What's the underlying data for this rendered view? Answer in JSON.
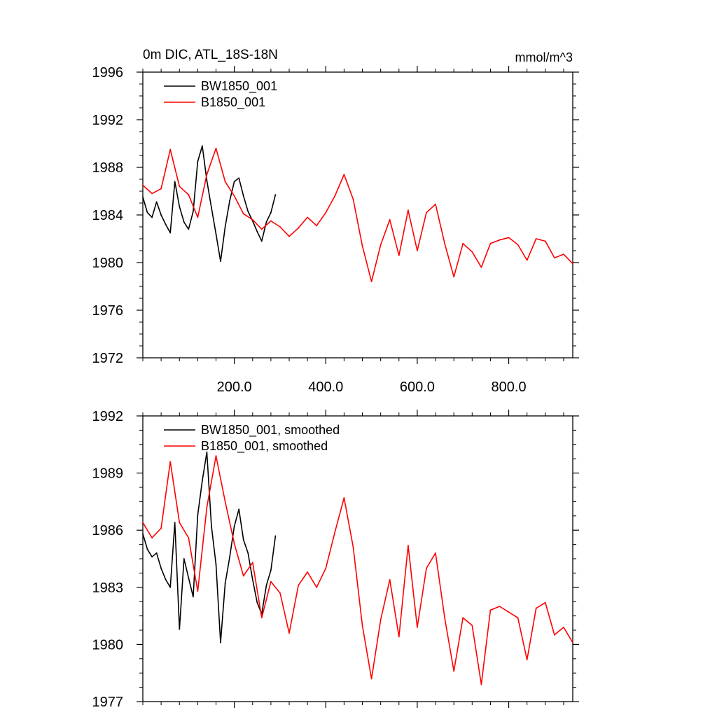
{
  "chart_data": [
    {
      "type": "line",
      "title": "0m DIC, ATL_18S-18N",
      "units": "mmol/m^3",
      "xlabel": "",
      "ylabel": "",
      "xlim": [
        0,
        940
      ],
      "ylim": [
        1972,
        1996
      ],
      "xticks": [
        200,
        400,
        600,
        800
      ],
      "xtick_labels": [
        "200.0",
        "400.0",
        "600.0",
        "800.0"
      ],
      "yticks": [
        1972,
        1976,
        1980,
        1984,
        1988,
        1992,
        1996
      ],
      "ytick_labels": [
        "1972",
        "1976",
        "1980",
        "1984",
        "1988",
        "1992",
        "1996"
      ],
      "legend_position": "top-left",
      "series": [
        {
          "name": "BW1850_001",
          "color": "#000000",
          "x": [
            0,
            10,
            20,
            30,
            40,
            50,
            60,
            70,
            80,
            90,
            100,
            110,
            120,
            130,
            140,
            150,
            160,
            170,
            180,
            190,
            200,
            210,
            220,
            230,
            240,
            250,
            260,
            270,
            280,
            290
          ],
          "values": [
            1985.5,
            1984.2,
            1983.8,
            1985.1,
            1984.0,
            1983.2,
            1982.5,
            1986.8,
            1984.7,
            1983.4,
            1982.8,
            1984.3,
            1988.5,
            1989.8,
            1986.9,
            1984.6,
            1982.4,
            1980.1,
            1983.0,
            1985.2,
            1986.8,
            1987.1,
            1985.6,
            1984.3,
            1983.5,
            1982.6,
            1981.8,
            1983.4,
            1984.2,
            1985.7
          ]
        },
        {
          "name": "B1850_001",
          "color": "#ff0000",
          "x": [
            0,
            20,
            40,
            60,
            80,
            100,
            120,
            140,
            160,
            180,
            200,
            220,
            240,
            260,
            280,
            300,
            320,
            340,
            360,
            380,
            400,
            420,
            440,
            460,
            480,
            500,
            520,
            540,
            560,
            580,
            600,
            620,
            640,
            660,
            680,
            700,
            720,
            740,
            760,
            780,
            800,
            820,
            840,
            860,
            880,
            900,
            920,
            940
          ],
          "values": [
            1986.5,
            1985.8,
            1986.2,
            1989.5,
            1986.4,
            1985.7,
            1983.8,
            1987.4,
            1989.6,
            1986.8,
            1985.6,
            1984.1,
            1983.6,
            1982.8,
            1983.5,
            1983.0,
            1982.2,
            1982.9,
            1983.8,
            1983.1,
            1984.2,
            1985.6,
            1987.4,
            1985.3,
            1981.4,
            1978.4,
            1981.5,
            1983.6,
            1980.6,
            1984.4,
            1981.0,
            1984.2,
            1984.9,
            1981.6,
            1978.8,
            1981.6,
            1980.9,
            1979.6,
            1981.6,
            1981.9,
            1982.1,
            1981.5,
            1980.2,
            1982.0,
            1981.8,
            1980.4,
            1980.7,
            1979.9
          ]
        }
      ]
    },
    {
      "type": "line",
      "title": "",
      "xlabel": "",
      "ylabel": "",
      "xlim": [
        0,
        940
      ],
      "ylim": [
        1977,
        1992
      ],
      "yticks": [
        1977,
        1980,
        1983,
        1986,
        1989,
        1992
      ],
      "ytick_labels": [
        "1977",
        "1980",
        "1983",
        "1986",
        "1989",
        "1992"
      ],
      "legend_position": "top-left",
      "series": [
        {
          "name": "BW1850_001, smoothed",
          "color": "#000000",
          "x": [
            0,
            10,
            20,
            30,
            40,
            50,
            60,
            70,
            80,
            90,
            100,
            110,
            120,
            130,
            140,
            150,
            160,
            170,
            180,
            190,
            200,
            210,
            220,
            230,
            240,
            250,
            260,
            270,
            280,
            290
          ],
          "values": [
            1985.8,
            1985.0,
            1984.6,
            1984.8,
            1984.0,
            1983.4,
            1983.0,
            1986.4,
            1980.8,
            1984.5,
            1983.5,
            1982.5,
            1986.8,
            1988.6,
            1990.1,
            1986.2,
            1984.2,
            1980.1,
            1983.2,
            1984.6,
            1986.2,
            1987.1,
            1985.5,
            1984.8,
            1983.4,
            1982.2,
            1981.6,
            1983.1,
            1983.9,
            1985.7
          ]
        },
        {
          "name": "B1850_001, smoothed",
          "color": "#ff0000",
          "x": [
            0,
            20,
            40,
            60,
            80,
            100,
            120,
            140,
            160,
            180,
            200,
            220,
            240,
            260,
            280,
            300,
            320,
            340,
            360,
            380,
            400,
            420,
            440,
            460,
            480,
            500,
            520,
            540,
            560,
            580,
            600,
            620,
            640,
            660,
            680,
            700,
            720,
            740,
            760,
            780,
            800,
            820,
            840,
            860,
            880,
            900,
            920,
            940
          ],
          "values": [
            1986.4,
            1985.6,
            1986.1,
            1989.6,
            1986.4,
            1985.6,
            1982.8,
            1987.2,
            1989.9,
            1987.5,
            1985.3,
            1983.6,
            1984.3,
            1981.4,
            1983.3,
            1982.7,
            1980.6,
            1983.1,
            1983.8,
            1983.0,
            1984.0,
            1985.9,
            1987.7,
            1985.1,
            1981.0,
            1978.2,
            1981.3,
            1983.4,
            1980.4,
            1985.2,
            1980.9,
            1984.0,
            1984.8,
            1981.4,
            1978.6,
            1981.4,
            1981.0,
            1977.9,
            1981.8,
            1982.0,
            1981.7,
            1981.4,
            1979.2,
            1981.9,
            1982.2,
            1980.5,
            1980.9,
            1980.1
          ]
        }
      ]
    }
  ]
}
